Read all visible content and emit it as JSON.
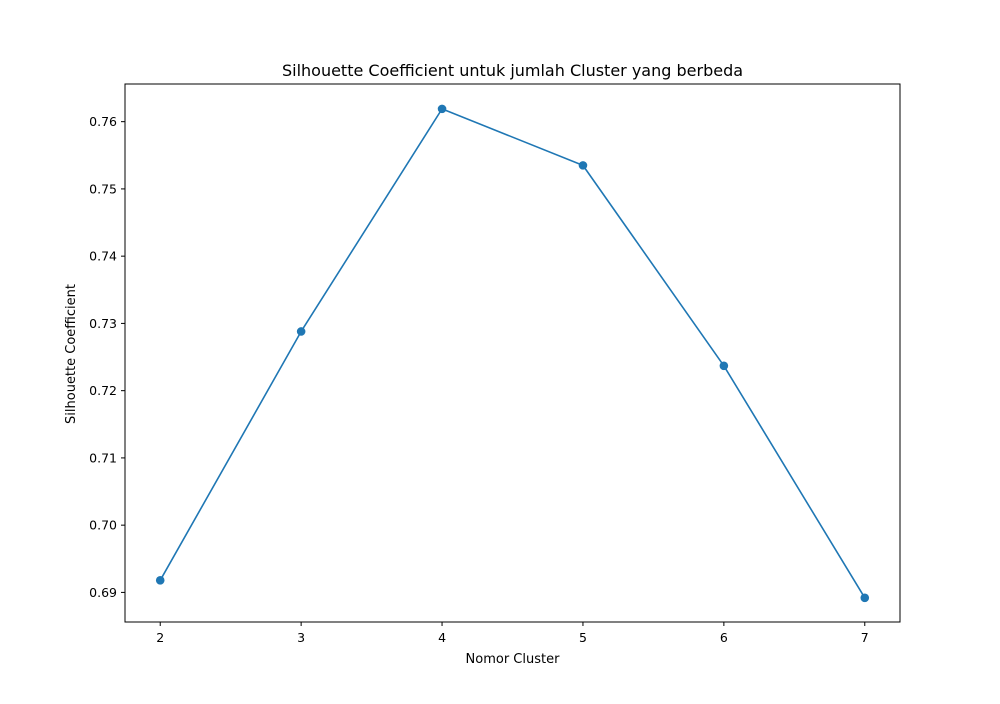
{
  "chart_data": {
    "type": "line",
    "title": "Silhouette Coefficient untuk jumlah Cluster yang berbeda",
    "xlabel": "Nomor Cluster",
    "ylabel": "Silhouette Coefficient",
    "x": [
      2,
      3,
      4,
      5,
      6,
      7
    ],
    "x_ticks": [
      "2",
      "3",
      "4",
      "5",
      "6",
      "7"
    ],
    "y_ticks": [
      "0.69",
      "0.70",
      "0.71",
      "0.72",
      "0.73",
      "0.74",
      "0.75",
      "0.76"
    ],
    "y_tick_values": [
      0.69,
      0.7,
      0.71,
      0.72,
      0.73,
      0.74,
      0.75,
      0.76
    ],
    "xlim": [
      1.75,
      7.25
    ],
    "ylim": [
      0.6856,
      0.7656
    ],
    "series": [
      {
        "values": [
          0.6918,
          0.7288,
          0.7619,
          0.7535,
          0.7237,
          0.6892
        ],
        "color": "#1f77b4",
        "marker": "circle"
      }
    ],
    "grid": false,
    "legend": "none"
  }
}
